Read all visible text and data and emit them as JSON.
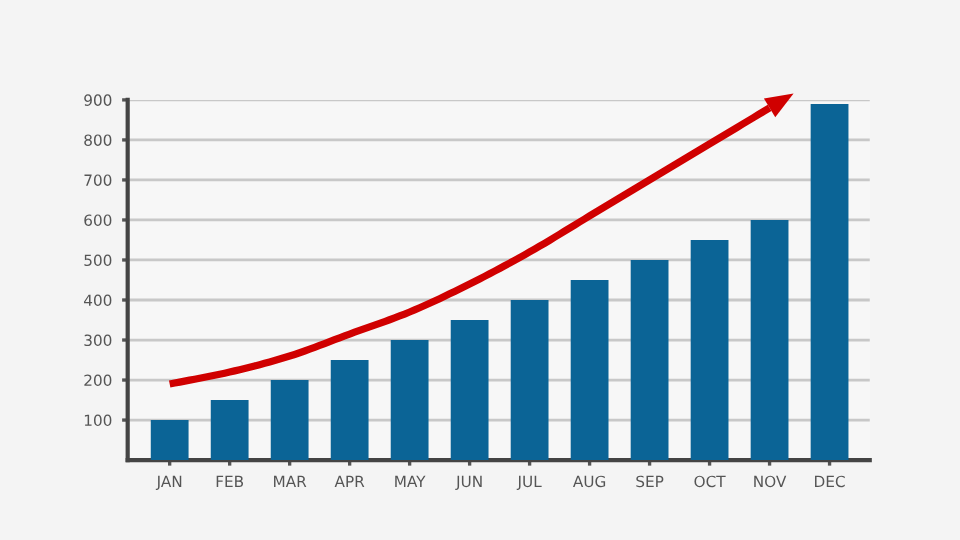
{
  "chart_data": {
    "type": "bar",
    "categories": [
      "JAN",
      "FEB",
      "MAR",
      "APR",
      "MAY",
      "JUN",
      "JUL",
      "AUG",
      "SEP",
      "OCT",
      "NOV",
      "DEC"
    ],
    "series": [
      {
        "color": "#0b6496",
        "values": [
          100,
          150,
          200,
          250,
          300,
          350,
          400,
          450,
          500,
          550,
          600,
          890
        ]
      },
      {
        "type": "line",
        "color": "#d00000",
        "values": [
          190,
          220,
          260,
          315,
          370,
          440,
          520,
          610,
          700,
          790,
          880,
          null
        ]
      }
    ],
    "ylim": [
      0,
      900
    ],
    "yticks": [
      100,
      200,
      300,
      400,
      500,
      600,
      700,
      800,
      900
    ],
    "grid": "y"
  }
}
